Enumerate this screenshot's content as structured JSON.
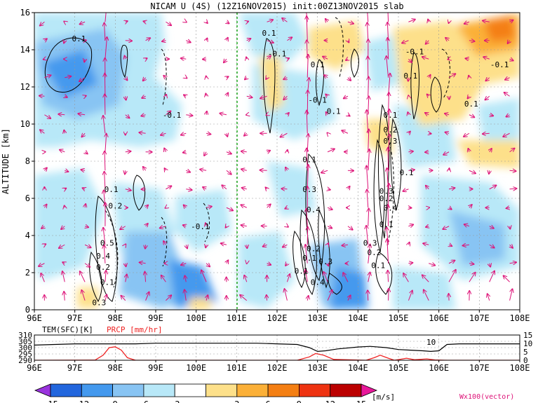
{
  "header": {
    "title": "NICAM U (4S) (12Z16NOV2015) init:00Z13NOV2015 slab"
  },
  "chart_data": [
    {
      "type": "heatmap",
      "title": "NICAM U (4S) (12Z16NOV2015) init:00Z13NOV2015 slab",
      "ylabel": "ALTITUDE [km]",
      "xlim": [
        96,
        108
      ],
      "ylim": [
        0,
        16
      ],
      "x_ticks": [
        "96E",
        "97E",
        "98E",
        "99E",
        "100E",
        "101E",
        "102E",
        "103E",
        "104E",
        "105E",
        "106E",
        "107E",
        "108E"
      ],
      "y_ticks": [
        "0",
        "2",
        "4",
        "6",
        "8",
        "10",
        "12",
        "14",
        "16"
      ],
      "grid": true,
      "reference_line": {
        "x": 101,
        "style": "dashed",
        "color": "#22aa22"
      },
      "contour_labels": [
        {
          "x": 97.1,
          "y": 14.6,
          "text": "0.1"
        },
        {
          "x": 101.8,
          "y": 14.9,
          "text": "0.1"
        },
        {
          "x": 102.0,
          "y": 13.8,
          "text": "-0.1"
        },
        {
          "x": 99.4,
          "y": 10.5,
          "text": "-0.1"
        },
        {
          "x": 103.0,
          "y": 13.2,
          "text": "0.1"
        },
        {
          "x": 103.0,
          "y": 11.3,
          "text": "-0.1"
        },
        {
          "x": 103.4,
          "y": 10.7,
          "text": "0.1"
        },
        {
          "x": 105.4,
          "y": 13.9,
          "text": "-0.1"
        },
        {
          "x": 105.3,
          "y": 12.6,
          "text": "0.1"
        },
        {
          "x": 107.5,
          "y": 13.2,
          "text": "-0.1"
        },
        {
          "x": 106.8,
          "y": 11.1,
          "text": "0.1"
        },
        {
          "x": 104.8,
          "y": 10.5,
          "text": "0.1"
        },
        {
          "x": 104.8,
          "y": 9.7,
          "text": "0.2"
        },
        {
          "x": 104.8,
          "y": 9.1,
          "text": "0.3"
        },
        {
          "x": 105.2,
          "y": 7.4,
          "text": "0.1"
        },
        {
          "x": 102.8,
          "y": 8.1,
          "text": "0.1"
        },
        {
          "x": 102.8,
          "y": 6.5,
          "text": "0.3"
        },
        {
          "x": 102.9,
          "y": 5.4,
          "text": "0.4"
        },
        {
          "x": 104.7,
          "y": 6.4,
          "text": "0.3"
        },
        {
          "x": 104.7,
          "y": 6.0,
          "text": "0.2"
        },
        {
          "x": 104.8,
          "y": 5.5,
          "text": "0.4"
        },
        {
          "x": 104.7,
          "y": 4.6,
          "text": "0.1"
        },
        {
          "x": 97.9,
          "y": 6.5,
          "text": "0.1"
        },
        {
          "x": 98.0,
          "y": 5.6,
          "text": "0.2"
        },
        {
          "x": 97.8,
          "y": 3.6,
          "text": "0.5"
        },
        {
          "x": 97.7,
          "y": 2.9,
          "text": "0.4"
        },
        {
          "x": 97.7,
          "y": 2.3,
          "text": "0.2"
        },
        {
          "x": 97.8,
          "y": 1.5,
          "text": "0.1"
        },
        {
          "x": 97.6,
          "y": 0.4,
          "text": "0.3"
        },
        {
          "x": 100.1,
          "y": 4.5,
          "text": "-0.1"
        },
        {
          "x": 102.9,
          "y": 3.3,
          "text": "0.2"
        },
        {
          "x": 102.8,
          "y": 2.8,
          "text": "0.1"
        },
        {
          "x": 103.2,
          "y": 2.6,
          "text": "0.3"
        },
        {
          "x": 102.6,
          "y": 2.1,
          "text": "0.1"
        },
        {
          "x": 103.0,
          "y": 1.5,
          "text": "0.4"
        },
        {
          "x": 104.3,
          "y": 3.6,
          "text": "0.3"
        },
        {
          "x": 104.4,
          "y": 3.1,
          "text": "0.2"
        },
        {
          "x": 104.5,
          "y": 2.4,
          "text": "0.1"
        }
      ]
    },
    {
      "type": "line",
      "xlim": [
        96,
        108
      ],
      "series": [
        {
          "name": "TEM(SFC)[K]",
          "color": "#000000",
          "x": [
            96,
            96.5,
            97,
            97.5,
            98,
            98.5,
            99,
            99.5,
            100,
            100.5,
            101,
            101.5,
            102,
            102.5,
            102.8,
            103,
            103.2,
            103.5,
            104,
            104.3,
            104.7,
            105,
            105.3,
            105.6,
            105.8,
            106,
            106.2,
            106.5,
            107,
            108
          ],
          "values": [
            302,
            302.5,
            303,
            303,
            303,
            303,
            303.5,
            303.5,
            303.5,
            303.5,
            303.5,
            303.5,
            303,
            302.5,
            300,
            297,
            297.5,
            299,
            300.5,
            301,
            300,
            298.5,
            298,
            297.5,
            297,
            297.5,
            302.5,
            303,
            303,
            303
          ],
          "ylim": [
            290,
            310
          ],
          "y_ticks": [
            "290",
            "295",
            "300",
            "305",
            "310"
          ]
        },
        {
          "name": "PRCP [mm/hr]",
          "color": "#ee2222",
          "x": [
            96,
            97.5,
            97.7,
            97.85,
            98,
            98.15,
            98.3,
            98.5,
            102.5,
            102.8,
            102.95,
            103.15,
            103.4,
            104.2,
            104.4,
            104.55,
            104.75,
            104.9,
            105.05,
            105.2,
            105.4,
            105.7,
            105.9,
            106.2,
            108
          ],
          "values": [
            0,
            0.1,
            3,
            7.5,
            8,
            6,
            1.5,
            0,
            0,
            2,
            4,
            3,
            0.5,
            0,
            1.5,
            3,
            1.2,
            0,
            0.6,
            1.2,
            0.3,
            0.8,
            0.2,
            0,
            0
          ],
          "ylim": [
            0,
            15
          ],
          "y_ticks": [
            "0",
            "5",
            "10",
            "15"
          ]
        }
      ],
      "x_ticks": [
        "96E",
        "97E",
        "98E",
        "99E",
        "100E",
        "101E",
        "102E",
        "103E",
        "104E",
        "105E",
        "106E",
        "107E",
        "108E"
      ],
      "annotation": "10"
    }
  ],
  "colorbar": {
    "unit": "[m/s]",
    "labels": [
      "-15",
      "-12",
      "-9",
      "-6",
      "-3",
      "3",
      "6",
      "9",
      "12",
      "15"
    ],
    "colors": [
      "#9933dd",
      "#2266dd",
      "#4499ee",
      "#88c4f3",
      "#b8e8f8",
      "#ffffff",
      "#fde08a",
      "#fbb038",
      "#f47f13",
      "#ee3311",
      "#bb0000",
      "#e8189a"
    ],
    "vector_note": "Wx100(vector)"
  },
  "palette": {
    "vector_color": "#dd1177"
  }
}
